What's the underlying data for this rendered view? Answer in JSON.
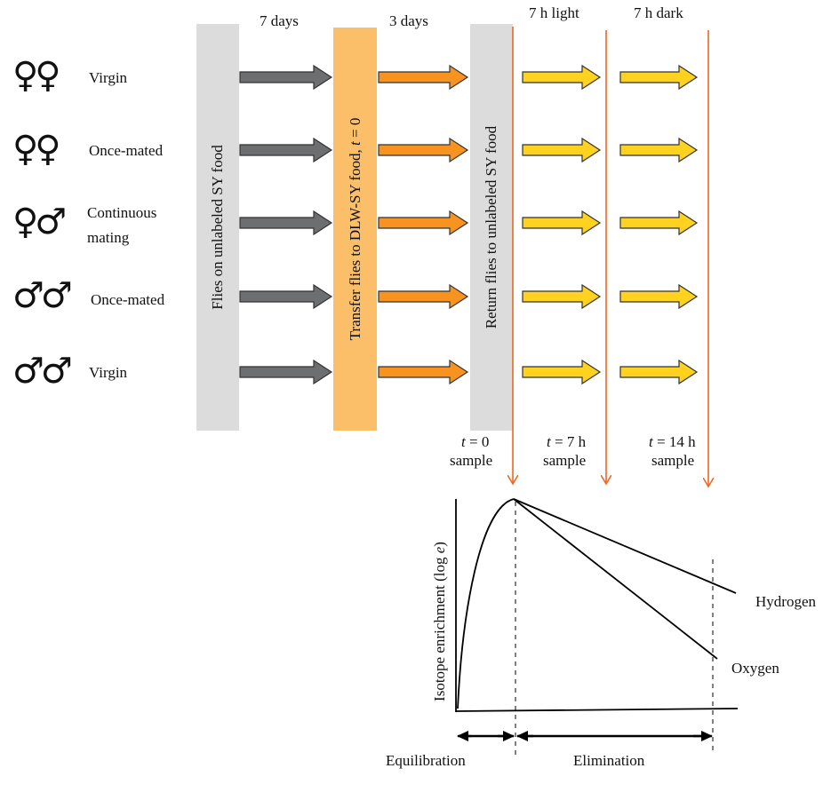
{
  "groups": [
    {
      "symbol": "♀♀",
      "label": "Virgin"
    },
    {
      "symbol": "♀♀",
      "label": "Once-mated"
    },
    {
      "symbol": "♀♂",
      "label_line1": "Continuous",
      "label_line2": "mating"
    },
    {
      "symbol": "♂♂",
      "label": "Once-mated"
    },
    {
      "symbol": "♂♂",
      "label": "Virgin"
    }
  ],
  "phases": {
    "days_7": "7 days",
    "days_3": "3 days",
    "light": "7 h light",
    "dark": "7 h dark"
  },
  "bars": {
    "unlabeled": "Flies on unlabeled SY food",
    "transfer": "Transfer flies to DLW-SY food, t = 0",
    "return": "Return flies to unlabeled SY food"
  },
  "samples": [
    {
      "time": "t = 0",
      "label": "sample"
    },
    {
      "time": "t = 7 h",
      "label": "sample"
    },
    {
      "time": "t = 14 h",
      "label": "sample"
    }
  ],
  "graph": {
    "ylabel": "Isotope enrichment (log e)",
    "hydrogen": "Hydrogen",
    "oxygen": "Oxygen",
    "equilibration": "Equilibration",
    "elimination": "Elimination"
  },
  "colors": {
    "grey_bar": "#dcdcdc",
    "orange_bar": "#fbbf6a",
    "dark_arrow": "#6d6e70",
    "orange_arrow": "#f7931e",
    "yellow_arrow": "#ffd21f",
    "sample_line": "#f26522"
  }
}
